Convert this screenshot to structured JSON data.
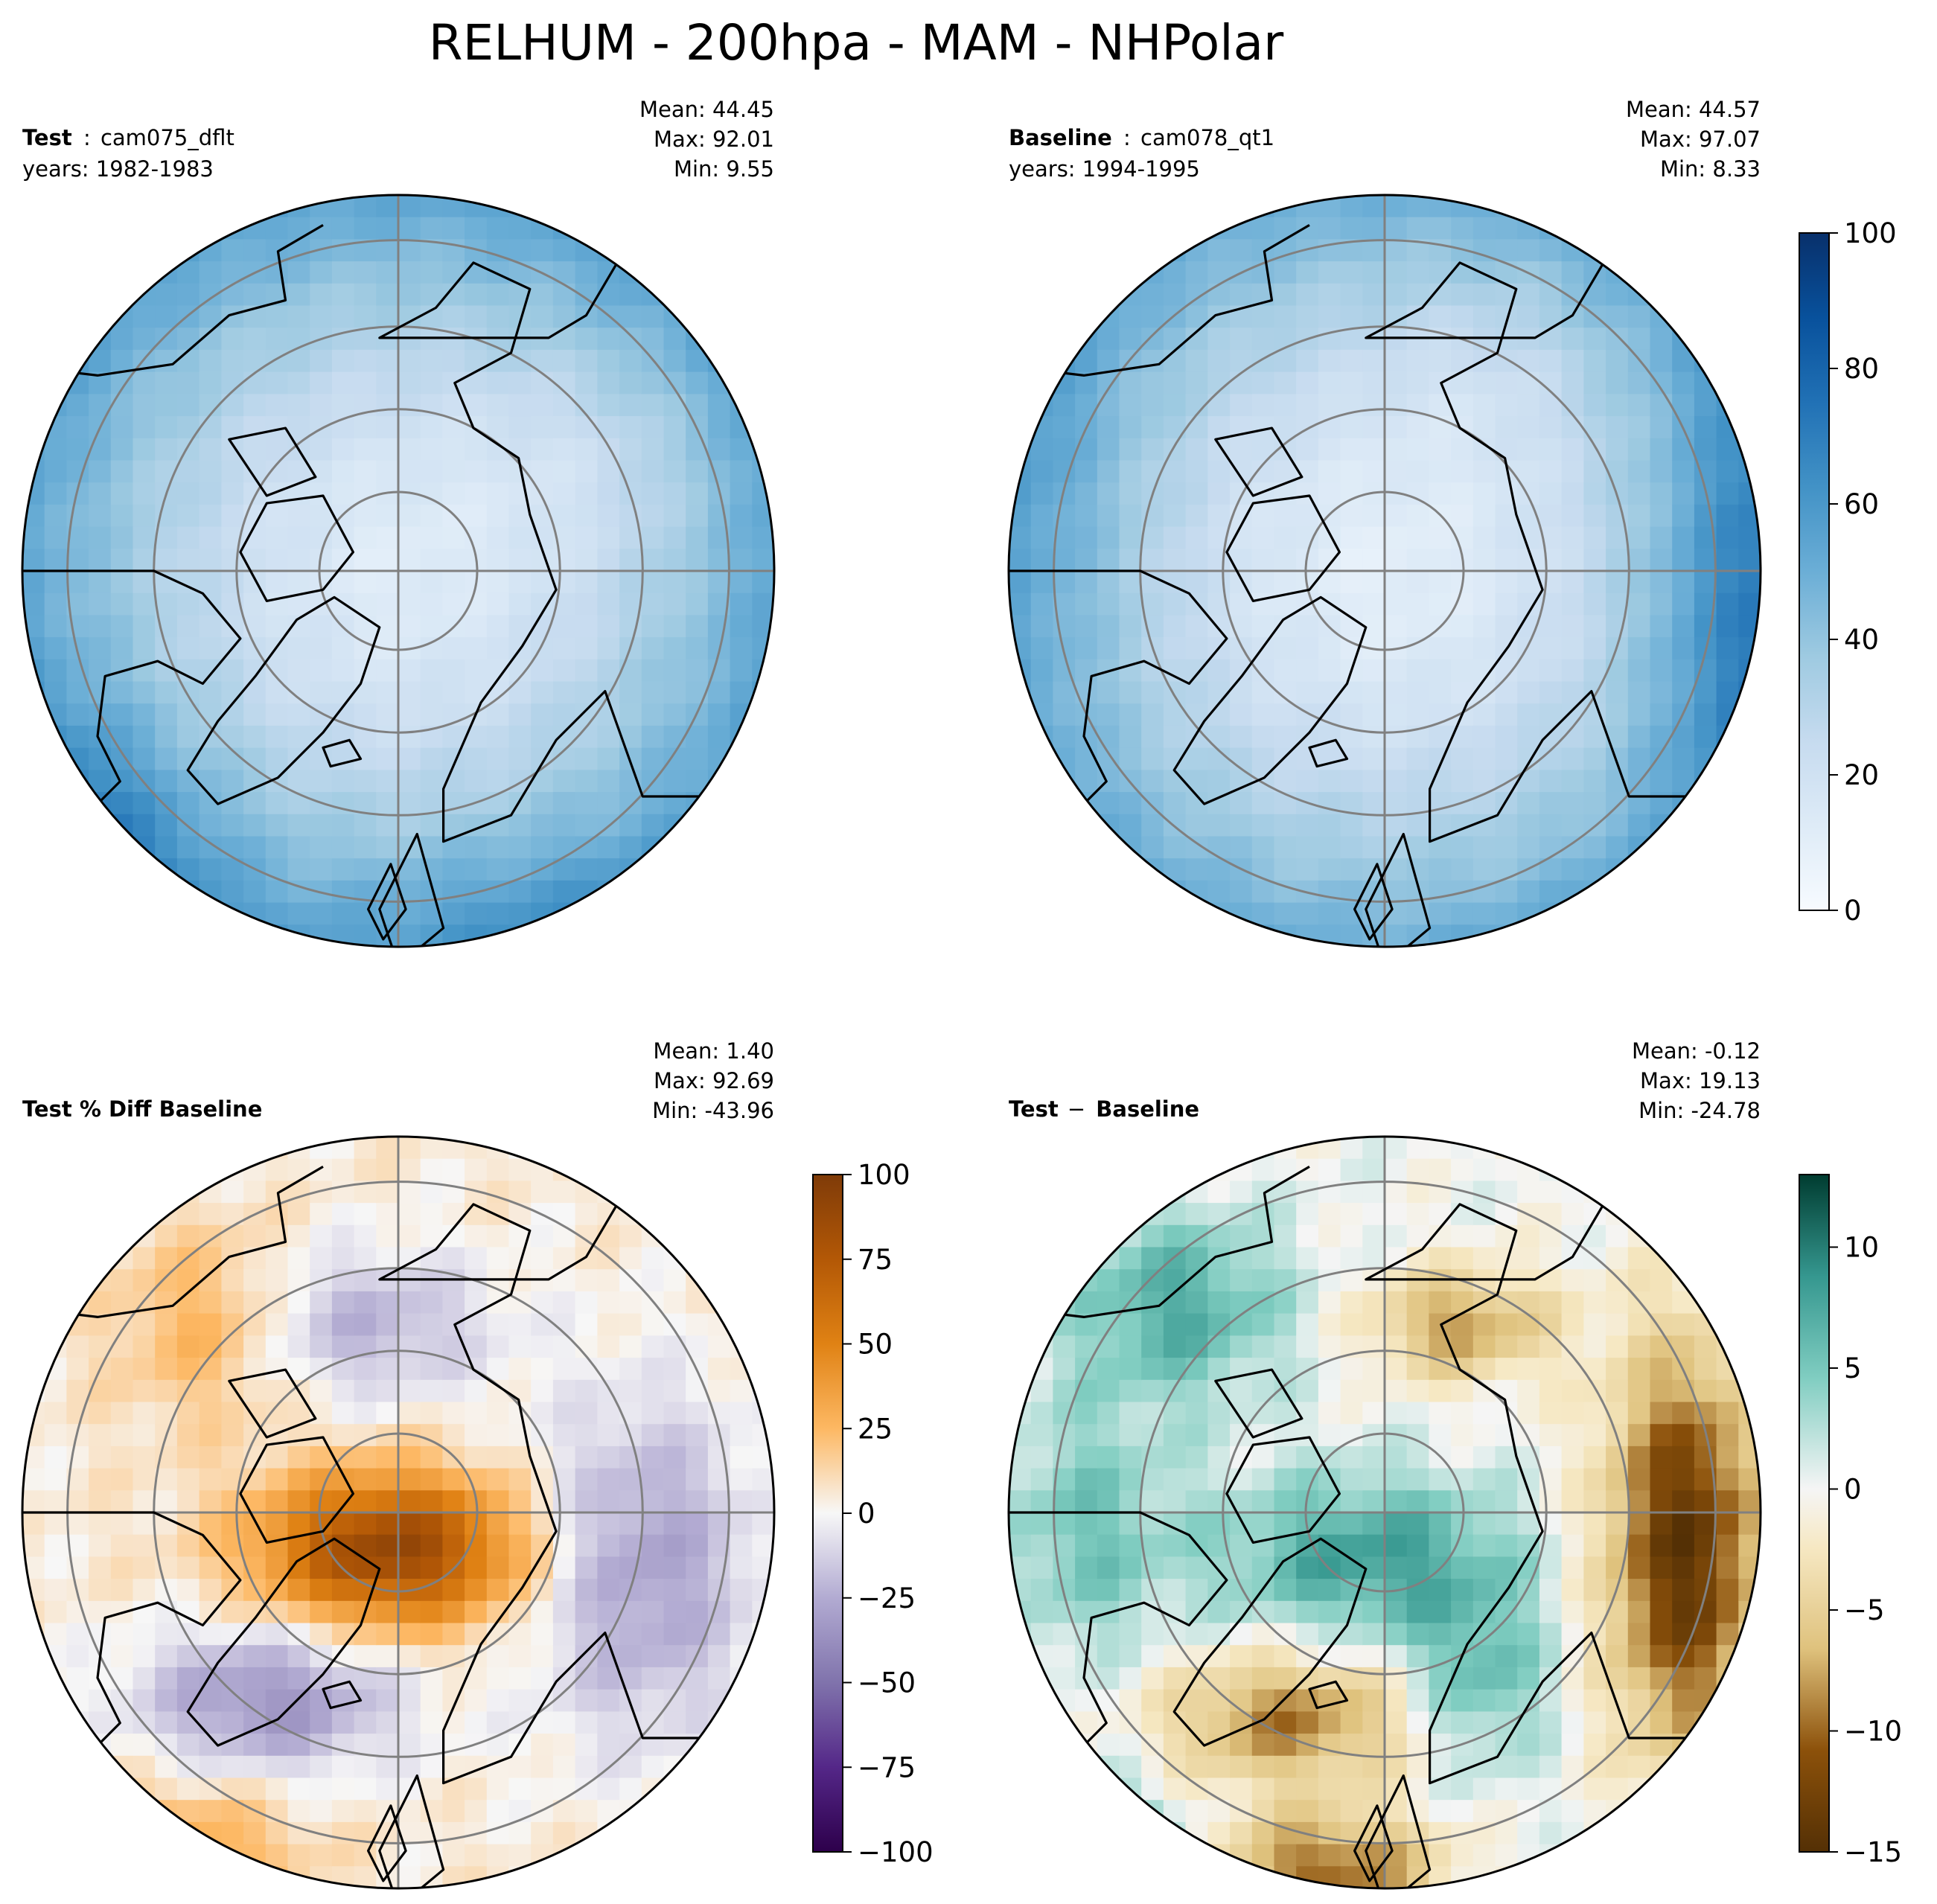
{
  "suptitle": "RELHUM - 200hpa - MAM - NHPolar",
  "colors": {
    "axis": "#000000",
    "grid": "#808080",
    "coast": "#000000"
  },
  "panels": [
    {
      "id": "test",
      "title_bold": "Test",
      "title_sep": ":",
      "title_rest": "cam075_dflt",
      "years": "years: 1982-1983",
      "stats": {
        "mean": "Mean: 44.45",
        "max": "Max: 92.01",
        "min": "Min:  9.55"
      },
      "colormap": "Blues",
      "has_colorbar": false
    },
    {
      "id": "baseline",
      "title_bold": "Baseline",
      "title_sep": ":",
      "title_rest": "cam078_qt1",
      "years": "years: 1994-1995",
      "stats": {
        "mean": "Mean: 44.57",
        "max": "Max: 97.07",
        "min": "Min:  8.33"
      },
      "colormap": "Blues",
      "has_colorbar": true,
      "colorbar": {
        "min": 0,
        "max": 100,
        "ticks": [
          0,
          20,
          40,
          60,
          80,
          100
        ]
      }
    },
    {
      "id": "pctdiff",
      "title_bold": "Test % Diff Baseline",
      "title_sep": "",
      "title_rest": "",
      "years": "",
      "stats": {
        "mean": "Mean:  1.40",
        "max": "Max: 92.69",
        "min": "Min: -43.96"
      },
      "colormap": "PuOr_r",
      "has_colorbar": true,
      "colorbar": {
        "min": -100,
        "max": 100,
        "ticks": [
          -100,
          -75,
          -50,
          -25,
          0,
          25,
          50,
          75,
          100
        ]
      }
    },
    {
      "id": "diff",
      "title_bold": "Test",
      "title_sep": "−",
      "title_rest": "Baseline",
      "years": "",
      "stats": {
        "mean": "Mean: -0.12",
        "max": "Max: 19.13",
        "min": "Min: -24.78"
      },
      "colormap": "BrBG",
      "has_colorbar": true,
      "colorbar": {
        "min": -15,
        "max": 13,
        "ticks": [
          -15,
          -10,
          -5,
          0,
          5,
          10
        ]
      }
    }
  ],
  "chart_data": [
    {
      "type": "heatmap",
      "title": "cam075_dflt",
      "projection": "north polar stereographic",
      "variable": "RELHUM",
      "units": "%",
      "vmin": 0,
      "vmax": 100,
      "mean": 44.45,
      "max": 92.01,
      "min": 9.55,
      "value_range": [
        0,
        100
      ],
      "note": "low (10-25) over the pole, increasing to 50-70 toward the 50N edge; highest near the lower-left edge"
    },
    {
      "type": "heatmap",
      "title": "cam078_qt1",
      "projection": "north polar stereographic",
      "variable": "RELHUM",
      "units": "%",
      "vmin": 0,
      "vmax": 100,
      "mean": 44.57,
      "max": 97.07,
      "min": 8.33,
      "value_range": [
        0,
        100
      ],
      "note": "low over the pole, increasing toward the edge; highest near the right (Pacific) edge"
    },
    {
      "type": "heatmap",
      "title": "Test % Diff Baseline",
      "projection": "north polar stereographic",
      "units": "%",
      "vmin": -100,
      "vmax": 100,
      "mean": 1.4,
      "max": 92.69,
      "min": -43.96,
      "value_range": [
        -100,
        100
      ],
      "note": "strong positive (50-90) over the central Arctic, negative (-25 to -45) over Greenland, Siberia and the right side"
    },
    {
      "type": "heatmap",
      "title": "Test - Baseline",
      "projection": "north polar stereographic",
      "units": "%",
      "vmin": -15,
      "vmax": 13,
      "mean": -0.12,
      "max": 19.13,
      "min": -24.78,
      "value_range": [
        -15,
        13
      ],
      "note": "positive (5-10) over the central Arctic and upper-left, strongly negative (-10 to -15) along the right edge, Greenland and Europe"
    }
  ]
}
